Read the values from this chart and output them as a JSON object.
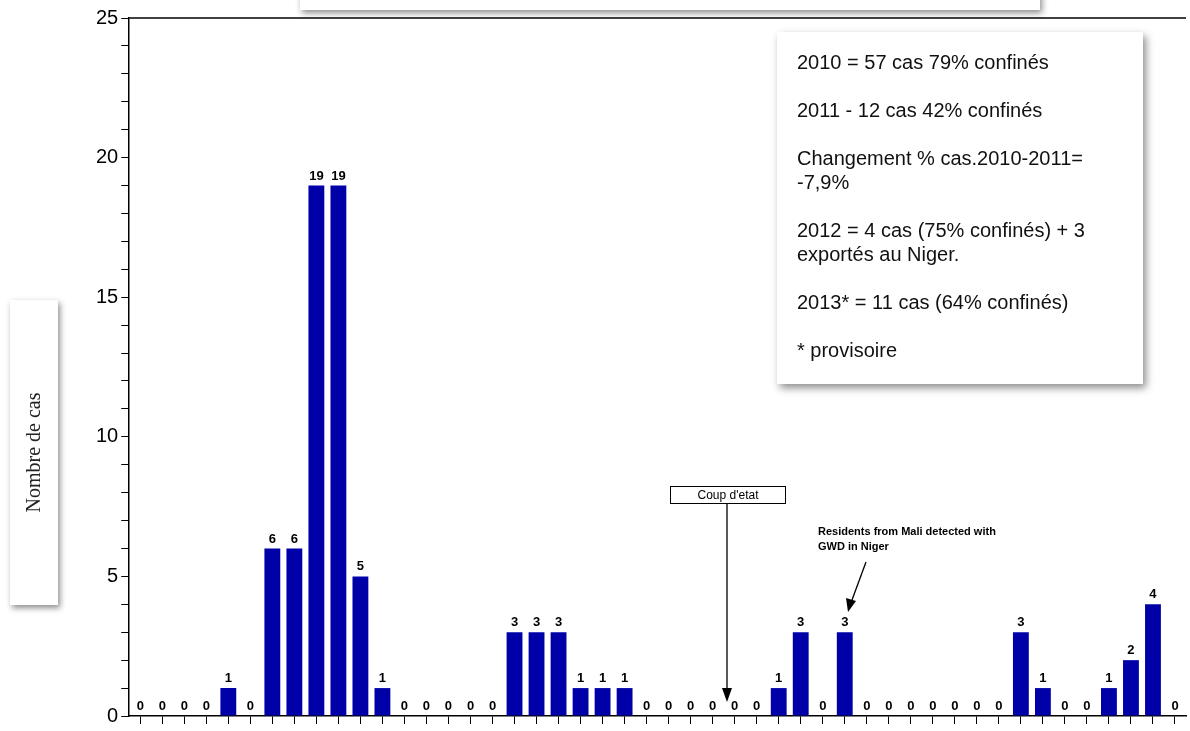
{
  "chart_data": {
    "type": "bar",
    "ylabel": "Nombre de cas",
    "categories": [
      null,
      null,
      null,
      null,
      null,
      null,
      null,
      null,
      null,
      null,
      null,
      null,
      null,
      null,
      null,
      null,
      null,
      null,
      null,
      null,
      null,
      null,
      null,
      null,
      null,
      null,
      null,
      null,
      null,
      null,
      null,
      null,
      null,
      null,
      null,
      null,
      null,
      null,
      null,
      null,
      null,
      null,
      null,
      null,
      null,
      null,
      null,
      null
    ],
    "values": [
      0,
      0,
      0,
      0,
      1,
      0,
      6,
      6,
      19,
      19,
      5,
      1,
      0,
      0,
      0,
      0,
      0,
      3,
      3,
      3,
      1,
      1,
      1,
      0,
      0,
      0,
      0,
      0,
      0,
      1,
      3,
      0,
      3,
      0,
      0,
      0,
      0,
      0,
      0,
      0,
      3,
      1,
      0,
      0,
      1,
      2,
      4,
      0
    ],
    "color": "#0000a8",
    "ylim": [
      0,
      25
    ],
    "yticks": [
      0,
      {
        "value": 1,
        "label": null
      },
      {
        "value": 2,
        "label": null
      },
      {
        "value": 3,
        "label": null
      },
      {
        "value": 4,
        "label": null
      },
      5,
      {
        "value": 6,
        "label": null
      },
      {
        "value": 7,
        "label": null
      },
      {
        "value": 8,
        "label": null
      },
      {
        "value": 9,
        "label": null
      },
      10,
      {
        "value": 11,
        "label": null
      },
      {
        "value": 12,
        "label": null
      },
      {
        "value": 13,
        "label": null
      },
      {
        "value": 14,
        "label": null
      },
      15,
      {
        "value": 16,
        "label": null
      },
      {
        "value": 17,
        "label": null
      },
      {
        "value": 18,
        "label": null
      },
      {
        "value": 19,
        "label": null
      },
      20,
      {
        "value": 21,
        "label": null
      },
      {
        "value": 22,
        "label": null
      },
      {
        "value": 23,
        "label": null
      },
      {
        "value": 24,
        "label": null
      },
      25
    ],
    "data_labels": true,
    "tick_labels": "y",
    "legend": false,
    "grid": false,
    "annotations": [
      "2010 = 57 cas 79% confinés",
      "2011 - 12 cas 42% confinés",
      "Changement % cas.2010-2011= -7,9%",
      "2012 = 4 cas (75% confinés) + 3 exportés au Niger.",
      "2013* = 11 cas (64% confinés)",
      "* provisoire",
      "Coup d'etat",
      "Residents from Mali detected with GWD in Niger"
    ]
  }
}
